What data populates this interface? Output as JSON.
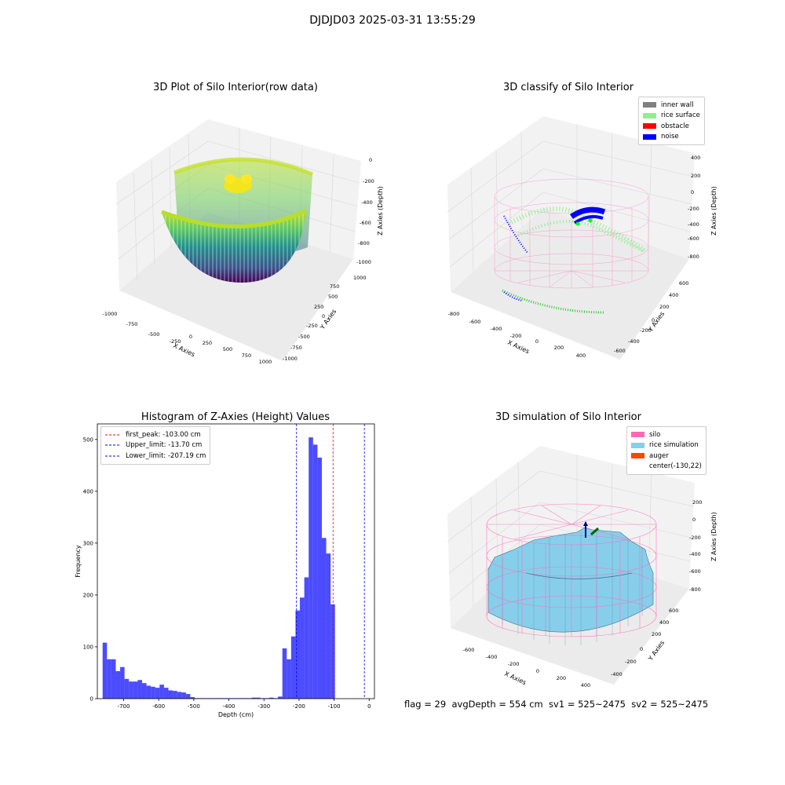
{
  "suptitle": "DJDJD03 2025-03-31 13:55:29",
  "panels": {
    "raw": {
      "title": "3D Plot of Silo Interior(row data)",
      "xlabel": "X Axies",
      "ylabel": "Y Axies",
      "zlabel": "Z Axies (Depth)",
      "xticks": [
        "-1000",
        "-750",
        "-500",
        "-250",
        "0",
        "250",
        "500",
        "750",
        "1000"
      ],
      "yticks": [
        "-1000",
        "-750",
        "-500",
        "-250",
        "0",
        "250",
        "500",
        "750",
        "1000"
      ],
      "zticks": [
        "0",
        "-200",
        "-400",
        "-600",
        "-800",
        "-1000"
      ]
    },
    "classify": {
      "title": "3D classify of Silo Interior",
      "xlabel": "X Axies",
      "ylabel": "Y Axies",
      "zlabel": "Z Axies (Depth)",
      "xticks": [
        "-800",
        "-600",
        "-400",
        "-200",
        "0",
        "200",
        "400"
      ],
      "yticks": [
        "-600",
        "-400",
        "-200",
        "0",
        "200",
        "400",
        "600"
      ],
      "zticks": [
        "400",
        "200",
        "0",
        "-200",
        "-400",
        "-600",
        "-800"
      ],
      "legend": [
        {
          "label": "inner wall",
          "color": "#808080"
        },
        {
          "label": "rice surface",
          "color": "#90ee90"
        },
        {
          "label": "obstacle",
          "color": "#ff0000"
        },
        {
          "label": "noise",
          "color": "#0000ff"
        }
      ]
    },
    "simulation": {
      "title": "3D simulation of Silo Interior",
      "xlabel": "X Axies",
      "ylabel": "Y Axies",
      "zlabel": "Z Axies (Depth)",
      "xticks": [
        "-600",
        "-400",
        "-200",
        "0",
        "200",
        "400"
      ],
      "yticks": [
        "-400",
        "-200",
        "0",
        "200",
        "400",
        "600"
      ],
      "zticks": [
        "200",
        "0",
        "-200",
        "-400",
        "-600",
        "-800"
      ],
      "legend": [
        {
          "label": "silo",
          "color": "#ff69b4"
        },
        {
          "label": "rice simulation",
          "color": "#87ceeb"
        },
        {
          "label": "auger",
          "color": "#ff4500"
        },
        {
          "label": "center(-130,22)",
          "color": ""
        }
      ]
    }
  },
  "chart_data": {
    "type": "bar",
    "title": "Histogram of Z-Axies (Height) Values",
    "xlabel": "Depth (cm)",
    "ylabel": "Frequency",
    "xlim": [
      -775,
      15
    ],
    "ylim": [
      0,
      530
    ],
    "xticks": [
      -700,
      -600,
      -500,
      -400,
      -300,
      -200,
      -100,
      0
    ],
    "yticks": [
      0,
      100,
      200,
      300,
      400,
      500
    ],
    "bar_color": "#0000ff",
    "bin_start": -760,
    "bin_width": 12.5,
    "values": [
      108,
      76,
      76,
      53,
      61,
      38,
      33,
      33,
      36,
      30,
      25,
      23,
      21,
      27,
      21,
      16,
      15,
      13,
      12,
      9,
      3,
      1,
      1,
      1,
      1,
      1,
      1,
      1,
      1,
      1,
      1,
      1,
      1,
      1,
      2,
      2,
      1,
      1,
      2,
      1,
      4,
      97,
      76,
      120,
      170,
      195,
      234,
      504,
      490,
      465,
      310,
      280,
      182
    ],
    "lines": [
      {
        "label": "first_peak: -103.00 cm",
        "x": -103.0,
        "color": "#ff0000"
      },
      {
        "label": "Upper_limit: -13.70 cm",
        "x": -13.7,
        "color": "#0000ff"
      },
      {
        "label": "Lower_limit: -207.19 cm",
        "x": -207.19,
        "color": "#0000ff"
      }
    ]
  },
  "footer": "flag = 29  avgDepth = 554 cm  sv1 = 525~2475  sv2 = 525~2475"
}
